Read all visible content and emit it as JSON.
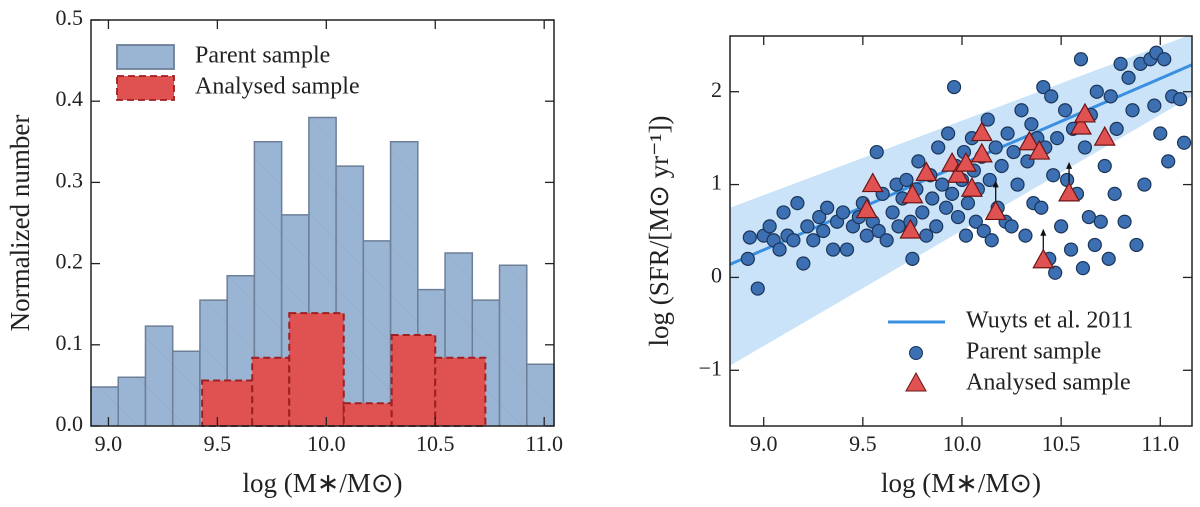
{
  "chart_data": [
    {
      "type": "histogram",
      "xlabel": "log (M∗/M⊙)",
      "ylabel": "Normalized number",
      "xlim": [
        8.92,
        11.045
      ],
      "ylim": [
        0,
        0.5
      ],
      "xticks": [
        {
          "value": 9,
          "label": "9.0"
        },
        9.5,
        {
          "value": 10,
          "label": "10.0"
        },
        10.5,
        {
          "value": 11,
          "label": "11.0"
        }
      ],
      "yticks": [
        {
          "value": 0,
          "label": "0.0"
        },
        0.1,
        0.2,
        0.3,
        0.4,
        0.5
      ],
      "legend": "upper left",
      "series": [
        {
          "name": "Parent sample",
          "color": "#9ab5d4",
          "edgecolor": "#6d7f97",
          "bins": [
            8.92,
            9.045,
            9.17,
            9.295,
            9.42,
            9.545,
            9.67,
            9.795,
            9.92,
            10.045,
            10.17,
            10.295,
            10.42,
            10.545,
            10.67,
            10.795,
            10.92,
            11.045
          ],
          "values": [
            0.048,
            0.06,
            0.123,
            0.092,
            0.155,
            0.185,
            0.35,
            0.26,
            0.38,
            0.32,
            0.228,
            0.35,
            0.168,
            0.213,
            0.155,
            0.198,
            0.076
          ]
        },
        {
          "name": "Analysed sample",
          "color": "#e05252",
          "edgecolor": "#a01e1e",
          "bins": [
            9.43,
            9.66,
            9.83,
            10.08,
            10.3,
            10.5,
            10.73
          ],
          "values": [
            0.056,
            0.084,
            0.139,
            0.028,
            0.112,
            0.084
          ]
        }
      ]
    },
    {
      "type": "scatter",
      "xlabel": "log (M∗/M⊙)",
      "ylabel": "log (SFR/[M⊙ yr⁻¹])",
      "xlim": [
        8.83,
        11.16
      ],
      "ylim": [
        -1.6,
        2.6
      ],
      "xticks": [
        {
          "value": 9,
          "label": "9.0"
        },
        9.5,
        {
          "value": 10,
          "label": "10.0"
        },
        10.5,
        {
          "value": 11,
          "label": "11.0"
        }
      ],
      "yticks": [
        {
          "value": -1,
          "label": "−1"
        },
        0,
        1,
        2
      ],
      "legend": "lower right",
      "series": [
        {
          "name": "Wuyts et al. 2011",
          "type": "line",
          "color": "#3a8fe0",
          "band_color": "#b9d9f6",
          "x": [
            8.83,
            11.16
          ],
          "values": [
            0.14,
            2.29
          ],
          "band_lower": [
            -0.95,
            1.95
          ],
          "band_upper": [
            0.75,
            2.62
          ]
        },
        {
          "name": "Parent sample",
          "marker": "o",
          "color": "#3d70b2",
          "edgecolor": "#1b3559",
          "x": [
            8.92,
            8.93,
            8.97,
            9.0,
            9.03,
            9.05,
            9.08,
            9.1,
            9.12,
            9.15,
            9.17,
            9.2,
            9.22,
            9.25,
            9.28,
            9.3,
            9.32,
            9.35,
            9.37,
            9.4,
            9.42,
            9.45,
            9.48,
            9.5,
            9.52,
            9.55,
            9.57,
            9.58,
            9.6,
            9.62,
            9.65,
            9.67,
            9.68,
            9.7,
            9.72,
            9.74,
            9.75,
            9.77,
            9.78,
            9.8,
            9.82,
            9.84,
            9.85,
            9.87,
            9.88,
            9.9,
            9.92,
            9.93,
            9.95,
            9.96,
            9.97,
            9.98,
            10.0,
            10.01,
            10.02,
            10.03,
            10.05,
            10.06,
            10.07,
            10.08,
            10.1,
            10.11,
            10.13,
            10.14,
            10.15,
            10.17,
            10.18,
            10.2,
            10.22,
            10.23,
            10.25,
            10.26,
            10.28,
            10.3,
            10.32,
            10.33,
            10.35,
            10.36,
            10.38,
            10.4,
            10.41,
            10.42,
            10.44,
            10.45,
            10.46,
            10.47,
            10.48,
            10.5,
            10.52,
            10.53,
            10.55,
            10.56,
            10.58,
            10.6,
            10.61,
            10.62,
            10.64,
            10.65,
            10.67,
            10.68,
            10.7,
            10.72,
            10.74,
            10.75,
            10.77,
            10.78,
            10.8,
            10.82,
            10.84,
            10.86,
            10.88,
            10.9,
            10.92,
            10.95,
            10.97,
            10.98,
            11.0,
            11.02,
            11.04,
            11.06,
            11.1,
            11.12
          ],
          "values": [
            0.2,
            0.43,
            -0.12,
            0.45,
            0.55,
            0.4,
            0.3,
            0.7,
            0.45,
            0.4,
            0.8,
            0.15,
            0.55,
            0.4,
            0.65,
            0.5,
            0.75,
            0.3,
            0.6,
            0.7,
            0.3,
            0.55,
            0.65,
            0.8,
            0.45,
            0.6,
            1.35,
            0.5,
            0.9,
            0.4,
            0.7,
            1.0,
            0.55,
            0.85,
            1.05,
            0.6,
            0.2,
            0.95,
            1.25,
            0.7,
            0.45,
            1.1,
            0.85,
            0.55,
            1.4,
            1.0,
            0.75,
            1.55,
            0.9,
            2.05,
            1.2,
            0.65,
            1.05,
            1.35,
            0.45,
            0.8,
            1.5,
            1.15,
            0.6,
            0.95,
            1.3,
            0.5,
            1.7,
            1.05,
            0.4,
            1.4,
            0.75,
            1.2,
            0.6,
            1.55,
            0.55,
            1.35,
            1.0,
            1.8,
            0.45,
            1.25,
            1.65,
            0.8,
            1.5,
            0.75,
            2.05,
            1.4,
            0.2,
            1.95,
            1.1,
            0.05,
            1.5,
            0.55,
            1.8,
            1.05,
            0.3,
            1.6,
            0.9,
            2.35,
            0.1,
            1.4,
            0.65,
            1.75,
            0.35,
            2.0,
            0.6,
            1.2,
            0.2,
            1.95,
            0.9,
            1.6,
            2.3,
            0.6,
            2.15,
            1.8,
            0.35,
            2.3,
            1.0,
            2.35,
            1.85,
            2.42,
            1.55,
            2.35,
            1.25,
            1.95,
            1.92,
            1.45
          ]
        },
        {
          "name": "Analysed sample",
          "marker": "^",
          "color": "#e05252",
          "edgecolor": "#6e1414",
          "x": [
            9.52,
            9.55,
            9.74,
            9.75,
            9.82,
            9.95,
            9.98,
            10.02,
            10.05,
            10.1,
            10.1,
            10.17,
            10.34,
            10.39,
            10.41,
            10.54,
            10.6,
            10.62,
            10.72
          ],
          "values": [
            0.72,
            1.0,
            0.5,
            0.88,
            1.12,
            1.22,
            1.1,
            1.22,
            0.95,
            1.32,
            1.55,
            0.7,
            1.45,
            1.35,
            0.18,
            0.9,
            1.62,
            1.75,
            1.5
          ],
          "lower_limits": [
            11,
            14,
            15
          ]
        }
      ]
    }
  ]
}
